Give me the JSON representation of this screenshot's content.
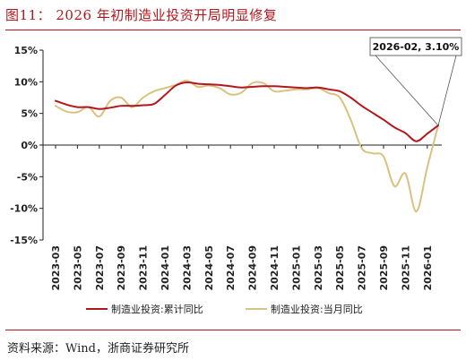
{
  "figure": {
    "title": "图11：  2026 年初制造业投资开局明显修复",
    "source": "资料来源：Wind，浙商证券研究所"
  },
  "chart_data": {
    "type": "line",
    "xlabel": "",
    "ylabel": "",
    "ylim": [
      -15,
      15
    ],
    "yticks": [
      15,
      10,
      5,
      0,
      -5,
      -10,
      -15
    ],
    "ytick_labels": [
      "15%",
      "10%",
      "5%",
      "0%",
      "-5%",
      "-10%",
      "-15%"
    ],
    "xtick_labels": [
      "2023-03",
      "2023-05",
      "2023-07",
      "2023-09",
      "2023-11",
      "2024-01",
      "2024-03",
      "2024-05",
      "2024-07",
      "2024-09",
      "2024-11",
      "2025-01",
      "2025-03",
      "2025-05",
      "2025-07",
      "2025-09",
      "2025-11",
      "2026-01"
    ],
    "categories": [
      "2023-03",
      "2023-04",
      "2023-05",
      "2023-06",
      "2023-07",
      "2023-08",
      "2023-09",
      "2023-10",
      "2023-11",
      "2023-12",
      "2024-01",
      "2024-02",
      "2024-03",
      "2024-04",
      "2024-05",
      "2024-06",
      "2024-07",
      "2024-08",
      "2024-09",
      "2024-10",
      "2024-11",
      "2024-12",
      "2025-01",
      "2025-02",
      "2025-03",
      "2025-04",
      "2025-05",
      "2025-06",
      "2025-07",
      "2025-08",
      "2025-09",
      "2025-10",
      "2025-11",
      "2025-12",
      "2026-01",
      "2026-02"
    ],
    "grid": false,
    "legend_position": "bottom",
    "series": [
      {
        "name": "制造业投资:累计同比",
        "color": "#b3171c",
        "values": [
          7.0,
          6.4,
          6.0,
          6.0,
          5.7,
          5.9,
          6.2,
          6.2,
          6.3,
          6.5,
          7.9,
          9.4,
          9.9,
          9.7,
          9.6,
          9.5,
          9.3,
          9.1,
          9.2,
          9.3,
          9.3,
          9.2,
          9.1,
          9.0,
          9.1,
          8.8,
          8.5,
          7.5,
          6.2,
          5.1,
          4.0,
          2.8,
          1.9,
          0.6,
          1.8,
          3.1
        ]
      },
      {
        "name": "制造业投资:当月同比",
        "color": "#d9c27f",
        "values": [
          6.2,
          5.3,
          5.2,
          6.0,
          4.5,
          7.0,
          7.5,
          6.0,
          7.5,
          8.5,
          9.0,
          9.5,
          10.2,
          9.2,
          9.4,
          9.0,
          8.0,
          8.3,
          9.8,
          9.8,
          8.5,
          8.6,
          8.8,
          8.8,
          9.0,
          8.2,
          7.5,
          4.0,
          -0.5,
          -1.3,
          -1.8,
          -6.5,
          -4.5,
          -10.5,
          -3.5,
          3.1
        ]
      }
    ],
    "annotation": {
      "label": "2026-02, 3.10%",
      "x": "2026-02",
      "y": 3.1
    }
  }
}
